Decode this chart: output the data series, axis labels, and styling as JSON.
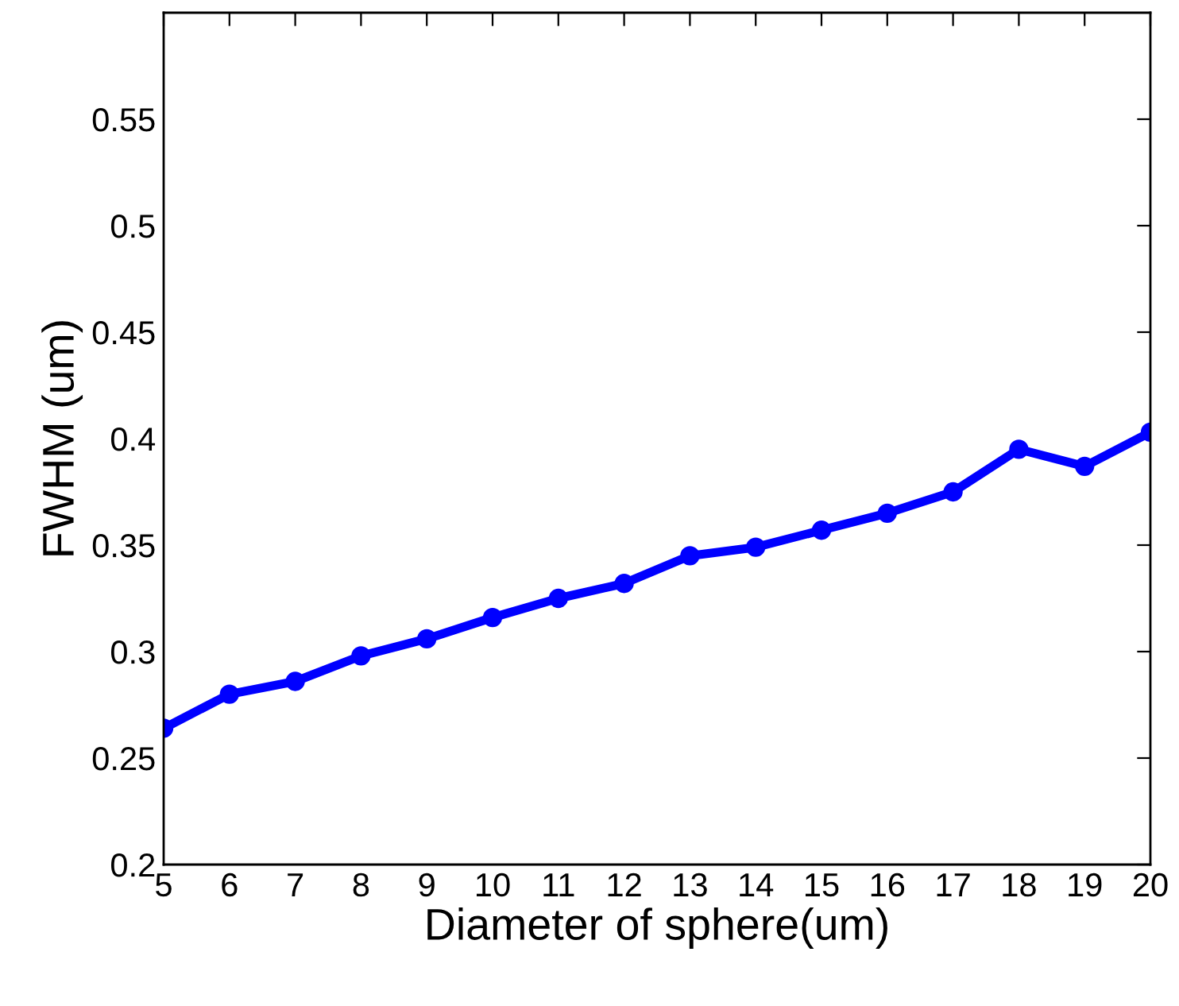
{
  "chart_data": {
    "type": "line",
    "xlabel": "Diameter of sphere(um)",
    "ylabel": "FWHM (um)",
    "x": [
      5,
      6,
      7,
      8,
      9,
      10,
      11,
      12,
      13,
      14,
      15,
      16,
      17,
      18,
      19,
      20
    ],
    "series": [
      {
        "color": "#0000ff",
        "values": [
          0.264,
          0.28,
          0.286,
          0.298,
          0.306,
          0.316,
          0.325,
          0.332,
          0.345,
          0.349,
          0.357,
          0.365,
          0.375,
          0.395,
          0.387,
          0.403
        ]
      }
    ],
    "xlim": [
      5,
      20
    ],
    "xticks": [
      5,
      6,
      7,
      8,
      9,
      10,
      11,
      12,
      13,
      14,
      15,
      16,
      17,
      18,
      19,
      20
    ],
    "ylim": [
      0.2,
      0.6
    ],
    "yticks": [
      0.2,
      0.25,
      0.3,
      0.35,
      0.4,
      0.45,
      0.5,
      0.55
    ],
    "marker": "circle",
    "line_style": "solid"
  }
}
